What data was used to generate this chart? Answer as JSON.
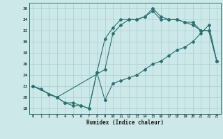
{
  "xlabel": "Humidex (Indice chaleur)",
  "bg_color": "#cde8e8",
  "line_color": "#2a7070",
  "grid_color": "#aacece",
  "xlim": [
    -0.5,
    23.5
  ],
  "ylim": [
    17,
    37
  ],
  "xticks": [
    0,
    1,
    2,
    3,
    4,
    5,
    6,
    7,
    8,
    9,
    10,
    11,
    12,
    13,
    14,
    15,
    16,
    17,
    18,
    19,
    20,
    21,
    22,
    23
  ],
  "yticks": [
    18,
    20,
    22,
    24,
    26,
    28,
    30,
    32,
    34,
    36
  ],
  "line1_x": [
    0,
    1,
    2,
    3,
    4,
    5,
    6,
    7,
    8,
    9,
    10,
    11,
    12,
    13,
    14,
    15,
    16,
    17,
    18,
    19,
    20,
    21,
    22,
    23
  ],
  "line1_y": [
    22,
    21.5,
    20.5,
    20,
    19,
    18.5,
    18.5,
    18,
    24.5,
    19.5,
    22.5,
    23,
    23.5,
    24,
    25,
    26,
    26.5,
    27.5,
    28.5,
    29,
    30,
    31.5,
    33,
    26.5
  ],
  "line2_x": [
    0,
    3,
    4,
    5,
    6,
    7,
    8,
    9,
    10,
    11,
    12,
    13,
    14,
    15,
    16,
    17,
    18,
    19,
    20,
    21,
    22,
    23
  ],
  "line2_y": [
    22,
    20,
    19,
    19,
    18.5,
    18,
    24.5,
    30.5,
    32.5,
    34,
    34,
    34,
    34.5,
    35.5,
    34,
    34,
    34,
    33.5,
    33,
    32,
    32,
    26.5
  ],
  "line3_x": [
    0,
    3,
    9,
    10,
    11,
    12,
    13,
    14,
    15,
    16,
    17,
    18,
    19,
    20,
    21,
    22,
    23
  ],
  "line3_y": [
    22,
    20,
    25,
    31.5,
    33,
    34,
    34,
    34.5,
    36,
    34.5,
    34,
    34,
    33.5,
    33.5,
    32,
    32,
    26.5
  ]
}
